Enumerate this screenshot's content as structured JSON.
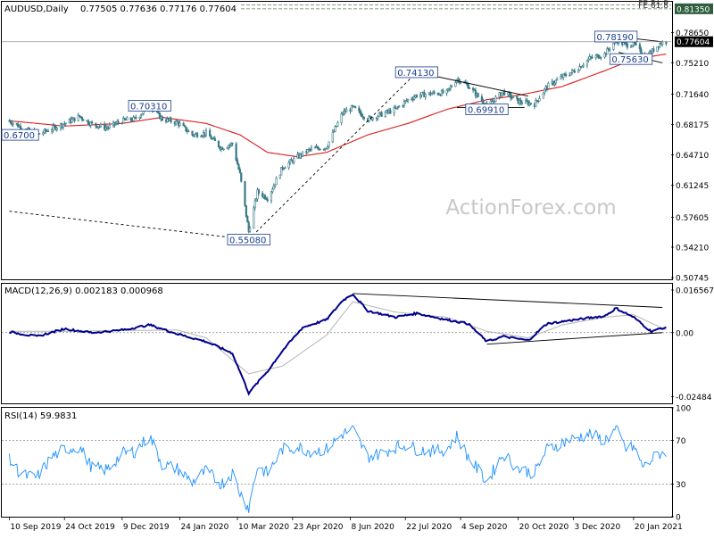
{
  "header": {
    "symbol": "AUDUSD,Daily",
    "ohlc": "0.77505 0.77636 0.77176 0.77604"
  },
  "watermark": "ActionForex.com",
  "colors": {
    "candle": "#3a7a86",
    "ma": "#d81e1e",
    "macd": "#00008b",
    "signal": "#b4b4b4",
    "rsi": "#1e90ff",
    "trendline": "#000000",
    "grid_dotted": "#888888",
    "fib": "#5a7a5a"
  },
  "chart_data": [
    {
      "type": "candlestick",
      "name": "price",
      "ylim": [
        0.5055,
        0.8215
      ],
      "y_ticks": [
        "0.78650",
        "0.75210",
        "0.71640",
        "0.68175",
        "0.64710",
        "0.61245",
        "0.57605",
        "0.54210",
        "0.50745"
      ],
      "current_price_label": "0.77604",
      "fib_lines": [
        {
          "label": "FE 61.8",
          "price": 0.8178
        },
        {
          "label": "FE 61.8",
          "price": 0.8135
        }
      ],
      "fib_price_label": "0.81350",
      "annotations": [
        {
          "text": "0.6700",
          "date": "2019-09-10",
          "price": 0.67
        },
        {
          "text": "0.70310",
          "date": "2019-12-31",
          "price": 0.7031
        },
        {
          "text": "0.55080",
          "date": "2020-03-19",
          "price": 0.5508
        },
        {
          "text": "0.74130",
          "date": "2020-07-31",
          "price": 0.7413
        },
        {
          "text": "0.69910",
          "date": "2020-09-25",
          "price": 0.6991
        },
        {
          "text": "0.78190",
          "date": "2021-01-06",
          "price": 0.7819
        },
        {
          "text": "0.75630",
          "date": "2021-01-18",
          "price": 0.7563
        }
      ],
      "close": [
        {
          "date": "2019-09-10",
          "value": 0.686
        },
        {
          "date": "2019-09-20",
          "value": 0.678
        },
        {
          "date": "2019-10-02",
          "value": 0.67
        },
        {
          "date": "2019-10-14",
          "value": 0.677
        },
        {
          "date": "2019-10-24",
          "value": 0.683
        },
        {
          "date": "2019-11-05",
          "value": 0.691
        },
        {
          "date": "2019-11-15",
          "value": 0.682
        },
        {
          "date": "2019-11-27",
          "value": 0.678
        },
        {
          "date": "2019-12-09",
          "value": 0.686
        },
        {
          "date": "2019-12-19",
          "value": 0.688
        },
        {
          "date": "2019-12-31",
          "value": 0.702
        },
        {
          "date": "2020-01-10",
          "value": 0.688
        },
        {
          "date": "2020-01-22",
          "value": 0.684
        },
        {
          "date": "2020-02-03",
          "value": 0.67
        },
        {
          "date": "2020-02-14",
          "value": 0.672
        },
        {
          "date": "2020-02-26",
          "value": 0.655
        },
        {
          "date": "2020-03-06",
          "value": 0.66
        },
        {
          "date": "2020-03-12",
          "value": 0.625
        },
        {
          "date": "2020-03-19",
          "value": 0.56
        },
        {
          "date": "2020-03-26",
          "value": 0.605
        },
        {
          "date": "2020-04-03",
          "value": 0.598
        },
        {
          "date": "2020-04-15",
          "value": 0.633
        },
        {
          "date": "2020-04-27",
          "value": 0.645
        },
        {
          "date": "2020-05-08",
          "value": 0.654
        },
        {
          "date": "2020-05-20",
          "value": 0.656
        },
        {
          "date": "2020-06-02",
          "value": 0.695
        },
        {
          "date": "2020-06-10",
          "value": 0.701
        },
        {
          "date": "2020-06-22",
          "value": 0.688
        },
        {
          "date": "2020-07-02",
          "value": 0.693
        },
        {
          "date": "2020-07-14",
          "value": 0.699
        },
        {
          "date": "2020-07-24",
          "value": 0.71
        },
        {
          "date": "2020-07-31",
          "value": 0.715
        },
        {
          "date": "2020-08-12",
          "value": 0.717
        },
        {
          "date": "2020-08-24",
          "value": 0.718
        },
        {
          "date": "2020-09-01",
          "value": 0.734
        },
        {
          "date": "2020-09-10",
          "value": 0.726
        },
        {
          "date": "2020-09-25",
          "value": 0.703
        },
        {
          "date": "2020-10-08",
          "value": 0.719
        },
        {
          "date": "2020-10-20",
          "value": 0.708
        },
        {
          "date": "2020-11-02",
          "value": 0.705
        },
        {
          "date": "2020-11-12",
          "value": 0.725
        },
        {
          "date": "2020-11-24",
          "value": 0.736
        },
        {
          "date": "2020-12-04",
          "value": 0.743
        },
        {
          "date": "2020-12-16",
          "value": 0.757
        },
        {
          "date": "2020-12-28",
          "value": 0.762
        },
        {
          "date": "2021-01-06",
          "value": 0.778
        },
        {
          "date": "2021-01-14",
          "value": 0.772
        },
        {
          "date": "2021-01-20",
          "value": 0.774
        },
        {
          "date": "2021-01-28",
          "value": 0.76
        },
        {
          "date": "2021-02-03",
          "value": 0.764
        },
        {
          "date": "2021-02-10",
          "value": 0.774
        },
        {
          "date": "2021-02-15",
          "value": 0.776
        }
      ],
      "moving_average": [
        {
          "date": "2019-09-10",
          "value": 0.686
        },
        {
          "date": "2019-10-24",
          "value": 0.68
        },
        {
          "date": "2019-12-09",
          "value": 0.683
        },
        {
          "date": "2020-01-10",
          "value": 0.69
        },
        {
          "date": "2020-02-14",
          "value": 0.683
        },
        {
          "date": "2020-03-12",
          "value": 0.67
        },
        {
          "date": "2020-04-03",
          "value": 0.65
        },
        {
          "date": "2020-04-27",
          "value": 0.645
        },
        {
          "date": "2020-05-20",
          "value": 0.65
        },
        {
          "date": "2020-06-22",
          "value": 0.67
        },
        {
          "date": "2020-07-24",
          "value": 0.683
        },
        {
          "date": "2020-08-24",
          "value": 0.699
        },
        {
          "date": "2020-09-25",
          "value": 0.71
        },
        {
          "date": "2020-10-20",
          "value": 0.715
        },
        {
          "date": "2020-11-24",
          "value": 0.725
        },
        {
          "date": "2020-12-28",
          "value": 0.743
        },
        {
          "date": "2021-01-20",
          "value": 0.756
        },
        {
          "date": "2021-02-15",
          "value": 0.762
        }
      ],
      "trendlines": [
        [
          {
            "date": "2019-09-10",
            "price": 0.583
          },
          {
            "date": "2020-03-19",
            "price": 0.5508
          }
        ],
        [
          {
            "date": "2020-03-19",
            "price": 0.5508
          },
          {
            "date": "2020-07-31",
            "price": 0.7413
          }
        ],
        [
          {
            "date": "2020-07-31",
            "price": 0.7413
          },
          {
            "date": "2020-10-28",
            "price": 0.714
          }
        ],
        [
          {
            "date": "2020-09-01",
            "price": 0.701
          },
          {
            "date": "2020-10-25",
            "price": 0.701
          }
        ],
        [
          {
            "date": "2021-01-06",
            "price": 0.7819
          },
          {
            "date": "2021-02-12",
            "price": 0.776
          }
        ],
        [
          {
            "date": "2021-01-08",
            "price": 0.764
          },
          {
            "date": "2021-02-12",
            "price": 0.752
          }
        ]
      ]
    },
    {
      "type": "line",
      "name": "macd",
      "label": "MACD(12,26,9) 0.002183 0.000968",
      "ylim": [
        -0.0275,
        0.019
      ],
      "y_ticks": [
        "0.016567",
        "0.00",
        "-0.02484"
      ],
      "series": [
        {
          "name": "MACD",
          "points": [
            {
              "date": "2019-09-10",
              "value": 0.0003
            },
            {
              "date": "2019-10-02",
              "value": -0.0015
            },
            {
              "date": "2019-10-24",
              "value": 0.0015
            },
            {
              "date": "2019-11-15",
              "value": 0.0
            },
            {
              "date": "2019-12-09",
              "value": 0.001
            },
            {
              "date": "2019-12-31",
              "value": 0.003
            },
            {
              "date": "2020-01-22",
              "value": -0.0005
            },
            {
              "date": "2020-02-14",
              "value": -0.0035
            },
            {
              "date": "2020-03-06",
              "value": -0.008
            },
            {
              "date": "2020-03-19",
              "value": -0.0235
            },
            {
              "date": "2020-04-03",
              "value": -0.015
            },
            {
              "date": "2020-04-15",
              "value": -0.007
            },
            {
              "date": "2020-05-01",
              "value": 0.002
            },
            {
              "date": "2020-05-20",
              "value": 0.005
            },
            {
              "date": "2020-06-02",
              "value": 0.0125
            },
            {
              "date": "2020-06-10",
              "value": 0.015
            },
            {
              "date": "2020-06-22",
              "value": 0.0085
            },
            {
              "date": "2020-07-14",
              "value": 0.006
            },
            {
              "date": "2020-07-31",
              "value": 0.0075
            },
            {
              "date": "2020-08-24",
              "value": 0.005
            },
            {
              "date": "2020-09-10",
              "value": 0.0035
            },
            {
              "date": "2020-09-25",
              "value": -0.0035
            },
            {
              "date": "2020-10-08",
              "value": -0.0015
            },
            {
              "date": "2020-10-28",
              "value": -0.003
            },
            {
              "date": "2020-11-12",
              "value": 0.0035
            },
            {
              "date": "2020-12-04",
              "value": 0.005
            },
            {
              "date": "2020-12-28",
              "value": 0.0065
            },
            {
              "date": "2021-01-06",
              "value": 0.0095
            },
            {
              "date": "2021-01-20",
              "value": 0.006
            },
            {
              "date": "2021-02-03",
              "value": 0.0005
            },
            {
              "date": "2021-02-15",
              "value": 0.0022
            }
          ]
        },
        {
          "name": "Signal",
          "points": [
            {
              "date": "2019-09-10",
              "value": 0.0005
            },
            {
              "date": "2019-10-24",
              "value": 0.0005
            },
            {
              "date": "2019-12-09",
              "value": 0.0008
            },
            {
              "date": "2020-01-22",
              "value": 0.001
            },
            {
              "date": "2020-02-14",
              "value": -0.002
            },
            {
              "date": "2020-03-19",
              "value": -0.016
            },
            {
              "date": "2020-04-15",
              "value": -0.013
            },
            {
              "date": "2020-05-20",
              "value": -0.001
            },
            {
              "date": "2020-06-10",
              "value": 0.012
            },
            {
              "date": "2020-07-14",
              "value": 0.008
            },
            {
              "date": "2020-08-24",
              "value": 0.006
            },
            {
              "date": "2020-09-25",
              "value": 0.0005
            },
            {
              "date": "2020-10-28",
              "value": -0.002
            },
            {
              "date": "2020-11-24",
              "value": 0.003
            },
            {
              "date": "2020-12-28",
              "value": 0.006
            },
            {
              "date": "2021-01-20",
              "value": 0.007
            },
            {
              "date": "2021-02-15",
              "value": 0.001
            }
          ]
        }
      ],
      "trendlines": [
        [
          {
            "date": "2020-06-10",
            "price": 0.0152
          },
          {
            "date": "2021-02-12",
            "price": 0.0098
          }
        ],
        [
          {
            "date": "2020-09-25",
            "price": -0.0045
          },
          {
            "date": "2021-02-12",
            "price": 0.0
          }
        ]
      ]
    },
    {
      "type": "line",
      "name": "rsi",
      "label": "RSI(14) 59.9831",
      "ylim": [
        0,
        100
      ],
      "y_ticks": [
        "100",
        "70",
        "30",
        "0"
      ],
      "levels": [
        70,
        30
      ],
      "values": [
        {
          "date": "2019-09-10",
          "value": 52
        },
        {
          "date": "2019-09-20",
          "value": 38
        },
        {
          "date": "2019-10-02",
          "value": 36
        },
        {
          "date": "2019-10-14",
          "value": 55
        },
        {
          "date": "2019-10-24",
          "value": 62
        },
        {
          "date": "2019-11-05",
          "value": 64
        },
        {
          "date": "2019-11-15",
          "value": 45
        },
        {
          "date": "2019-11-27",
          "value": 43
        },
        {
          "date": "2019-12-09",
          "value": 58
        },
        {
          "date": "2019-12-19",
          "value": 60
        },
        {
          "date": "2019-12-31",
          "value": 74
        },
        {
          "date": "2020-01-10",
          "value": 48
        },
        {
          "date": "2020-01-22",
          "value": 44
        },
        {
          "date": "2020-02-03",
          "value": 32
        },
        {
          "date": "2020-02-14",
          "value": 42
        },
        {
          "date": "2020-02-26",
          "value": 30
        },
        {
          "date": "2020-03-06",
          "value": 40
        },
        {
          "date": "2020-03-12",
          "value": 22
        },
        {
          "date": "2020-03-19",
          "value": 8
        },
        {
          "date": "2020-03-26",
          "value": 46
        },
        {
          "date": "2020-04-03",
          "value": 40
        },
        {
          "date": "2020-04-15",
          "value": 62
        },
        {
          "date": "2020-04-27",
          "value": 64
        },
        {
          "date": "2020-05-08",
          "value": 60
        },
        {
          "date": "2020-05-20",
          "value": 62
        },
        {
          "date": "2020-06-02",
          "value": 76
        },
        {
          "date": "2020-06-10",
          "value": 80
        },
        {
          "date": "2020-06-22",
          "value": 55
        },
        {
          "date": "2020-07-02",
          "value": 58
        },
        {
          "date": "2020-07-14",
          "value": 64
        },
        {
          "date": "2020-07-24",
          "value": 66
        },
        {
          "date": "2020-07-31",
          "value": 62
        },
        {
          "date": "2020-08-12",
          "value": 60
        },
        {
          "date": "2020-08-24",
          "value": 62
        },
        {
          "date": "2020-09-01",
          "value": 74
        },
        {
          "date": "2020-09-10",
          "value": 55
        },
        {
          "date": "2020-09-25",
          "value": 32
        },
        {
          "date": "2020-10-08",
          "value": 58
        },
        {
          "date": "2020-10-20",
          "value": 44
        },
        {
          "date": "2020-11-02",
          "value": 40
        },
        {
          "date": "2020-11-12",
          "value": 62
        },
        {
          "date": "2020-11-24",
          "value": 68
        },
        {
          "date": "2020-12-04",
          "value": 72
        },
        {
          "date": "2020-12-16",
          "value": 76
        },
        {
          "date": "2020-12-28",
          "value": 70
        },
        {
          "date": "2021-01-06",
          "value": 80
        },
        {
          "date": "2021-01-14",
          "value": 62
        },
        {
          "date": "2021-01-20",
          "value": 64
        },
        {
          "date": "2021-01-28",
          "value": 45
        },
        {
          "date": "2021-02-03",
          "value": 52
        },
        {
          "date": "2021-02-10",
          "value": 58
        },
        {
          "date": "2021-02-15",
          "value": 60
        }
      ]
    }
  ],
  "x_axis": {
    "ticks": [
      {
        "label": "10 Sep 2019",
        "date": "2019-09-10"
      },
      {
        "label": "24 Oct 2019",
        "date": "2019-10-24"
      },
      {
        "label": "9 Dec 2019",
        "date": "2019-12-09"
      },
      {
        "label": "24 Jan 2020",
        "date": "2020-01-24"
      },
      {
        "label": "10 Mar 2020",
        "date": "2020-03-10"
      },
      {
        "label": "23 Apr 2020",
        "date": "2020-04-23"
      },
      {
        "label": "8 Jun 2020",
        "date": "2020-06-08"
      },
      {
        "label": "22 Jul 2020",
        "date": "2020-07-22"
      },
      {
        "label": "4 Sep 2020",
        "date": "2020-09-04"
      },
      {
        "label": "20 Oct 2020",
        "date": "2020-10-20"
      },
      {
        "label": "3 Dec 2020",
        "date": "2020-12-03"
      },
      {
        "label": "20 Jan 2021",
        "date": "2021-01-20"
      }
    ]
  }
}
